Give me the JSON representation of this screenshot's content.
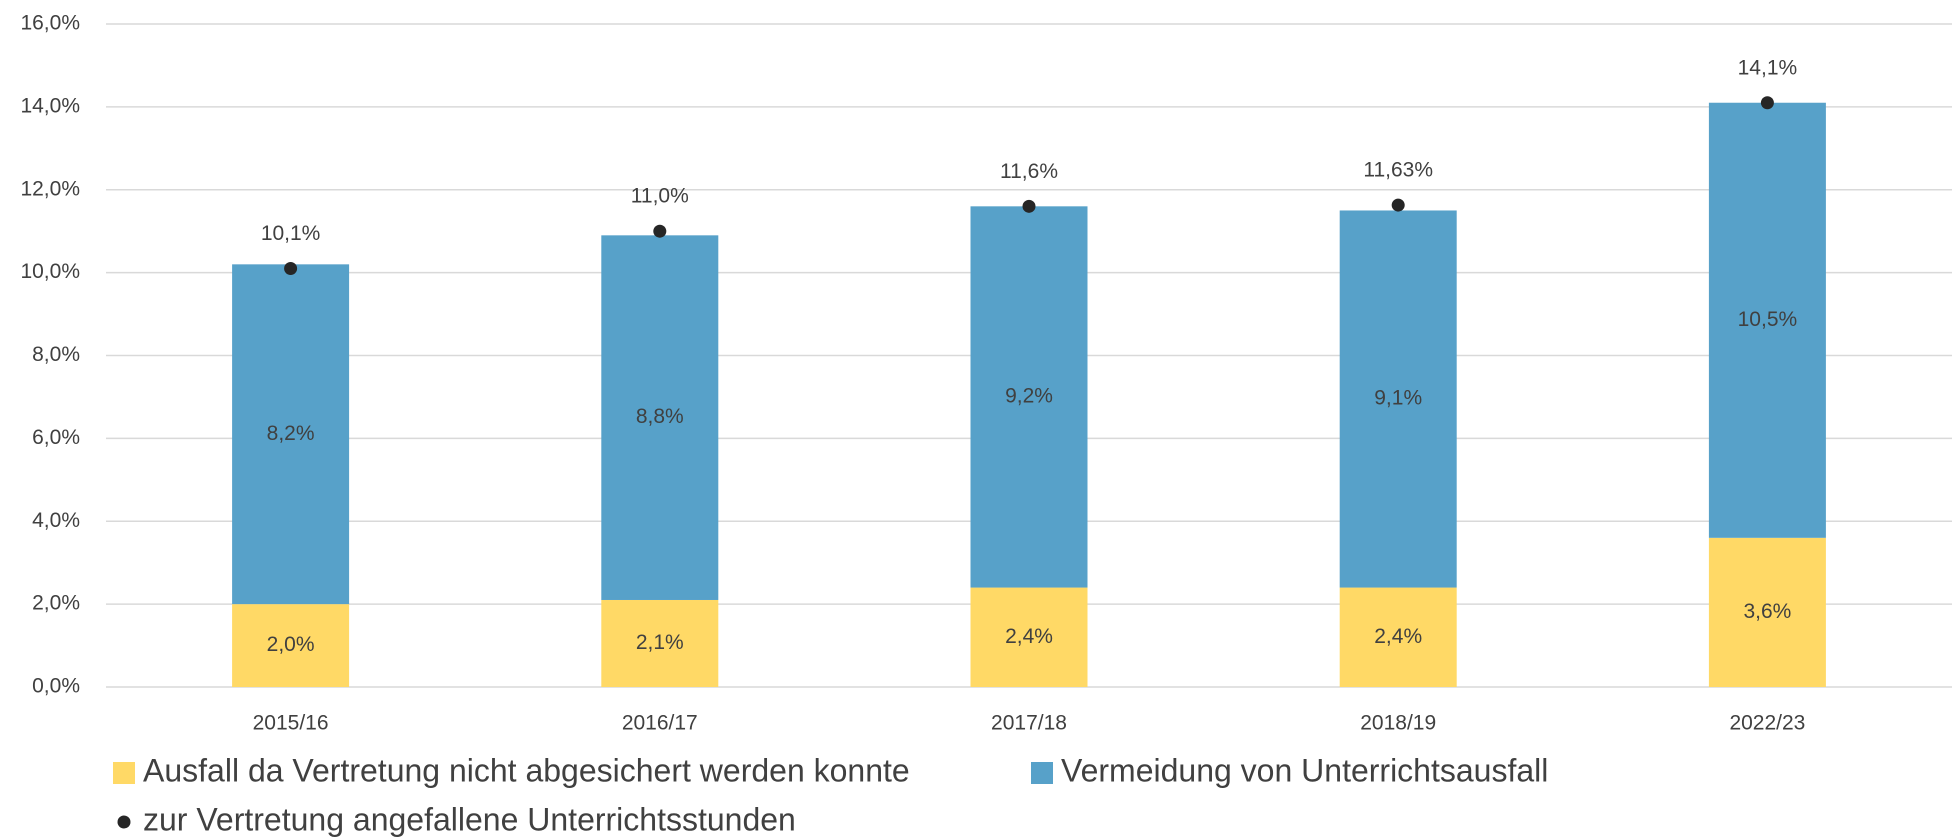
{
  "chart_data": {
    "type": "bar",
    "stacked": true,
    "categories": [
      "2015/16",
      "2016/17",
      "2017/18",
      "2018/19",
      "2022/23"
    ],
    "series": [
      {
        "name": "Ausfall da Vertretung nicht abgesichert werden konnte",
        "color": "#ffd966",
        "values": [
          2.0,
          2.1,
          2.4,
          2.4,
          3.6
        ],
        "value_labels": [
          "2,0%",
          "2,1%",
          "2,4%",
          "2,4%",
          "3,6%"
        ]
      },
      {
        "name": "Vermeidung von Unterrichtsausfall",
        "color": "#57a1c9",
        "values": [
          8.2,
          8.8,
          9.2,
          9.1,
          10.5
        ],
        "value_labels": [
          "8,2%",
          "8,8%",
          "9,2%",
          "9,1%",
          "10,5%"
        ]
      },
      {
        "name": "zur Vertretung angefallene Unterrichtsstunden",
        "type": "scatter",
        "color": "#262626",
        "values": [
          10.1,
          11.0,
          11.6,
          11.63,
          14.1
        ],
        "value_labels": [
          "10,1%",
          "11,0%",
          "11,6%",
          "11,63%",
          "14,1%"
        ]
      }
    ],
    "ylim": [
      0,
      16
    ],
    "yticks": [
      {
        "value": 0,
        "label": "0,0%"
      },
      {
        "value": 2,
        "label": "2,0%"
      },
      {
        "value": 4,
        "label": "4,0%"
      },
      {
        "value": 6,
        "label": "6,0%"
      },
      {
        "value": 8,
        "label": "8,0%"
      },
      {
        "value": 10,
        "label": "10,0%"
      },
      {
        "value": 12,
        "label": "12,0%"
      },
      {
        "value": 14,
        "label": "14,0%"
      },
      {
        "value": 16,
        "label": "16,0%"
      }
    ],
    "grid": true
  }
}
